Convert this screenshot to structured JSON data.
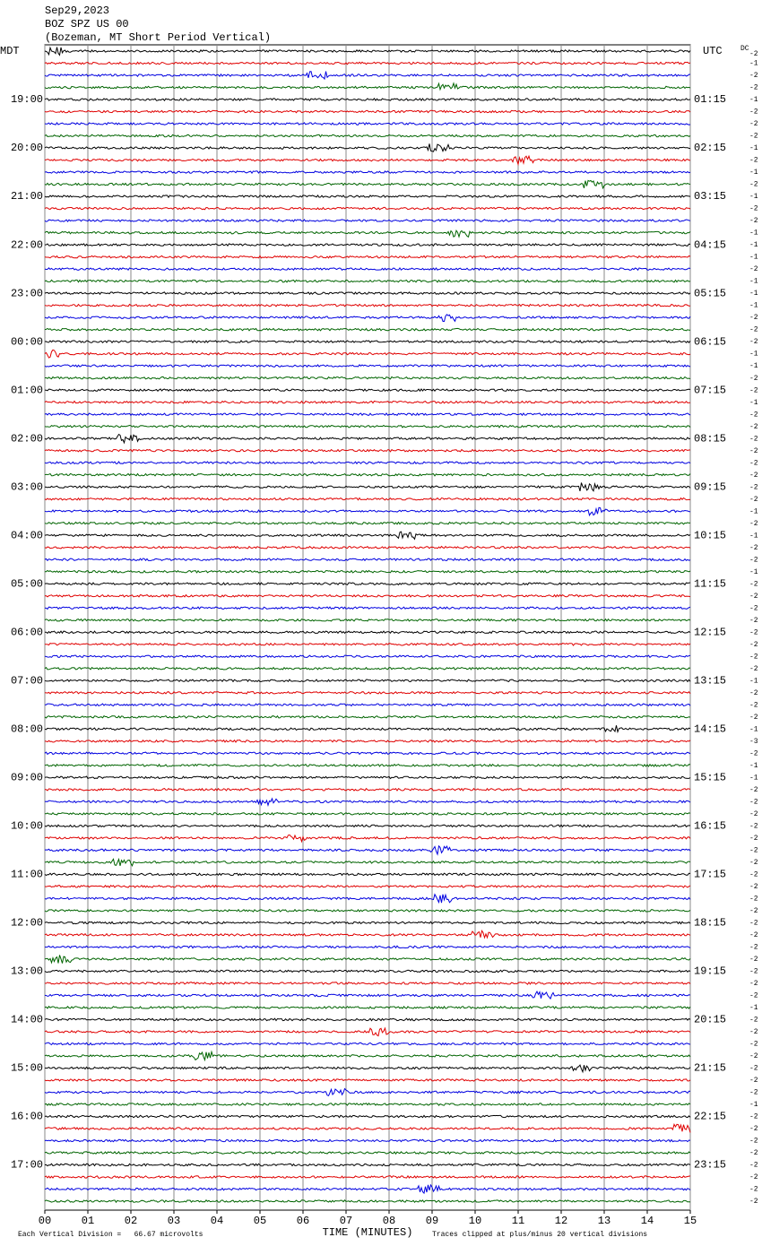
{
  "chart_data": {
    "type": "helicorder",
    "title_lines": [
      "Sep29,2023",
      "BOZ SPZ US 00",
      "(Bozeman, MT Short Period Vertical)"
    ],
    "left_zone": "MDT",
    "right_zone": "UTC",
    "dc_header": "DC",
    "xlabel": "TIME (MINUTES)",
    "scale_note": "Each Vertical Division =   66.67 microvolts",
    "clip_note": "Traces clipped at plus/minus 20 vertical divisions",
    "xlim": [
      0,
      15
    ],
    "xticks": [
      {
        "value": 0,
        "label": "00"
      },
      {
        "value": 1,
        "label": "01"
      },
      {
        "value": 2,
        "label": "02"
      },
      {
        "value": 3,
        "label": "03"
      },
      {
        "value": 4,
        "label": "04"
      },
      {
        "value": 5,
        "label": "05"
      },
      {
        "value": 6,
        "label": "06"
      },
      {
        "value": 7,
        "label": "07"
      },
      {
        "value": 8,
        "label": "08"
      },
      {
        "value": 9,
        "label": "09"
      },
      {
        "value": 10,
        "label": "10"
      },
      {
        "value": 11,
        "label": "11"
      },
      {
        "value": 12,
        "label": "12"
      },
      {
        "value": 13,
        "label": "13"
      },
      {
        "value": 14,
        "label": "14"
      },
      {
        "value": 15,
        "label": "15"
      }
    ],
    "grid": true,
    "trace_colors": [
      "#000000",
      "#e00000",
      "#0000e0",
      "#006400"
    ],
    "mdt_labels": [
      "19:00",
      "20:00",
      "21:00",
      "22:00",
      "23:00",
      "00:00",
      "01:00",
      "02:00",
      "03:00",
      "04:00",
      "05:00",
      "06:00",
      "07:00",
      "08:00",
      "09:00",
      "10:00",
      "11:00",
      "12:00",
      "13:00",
      "14:00",
      "15:00",
      "16:00",
      "17:00"
    ],
    "utc_labels": [
      "01:15",
      "02:15",
      "03:15",
      "04:15",
      "05:15",
      "06:15",
      "07:15",
      "08:15",
      "09:15",
      "10:15",
      "11:15",
      "12:15",
      "13:15",
      "14:15",
      "15:15",
      "16:15",
      "17:15",
      "18:15",
      "19:15",
      "20:15",
      "21:15",
      "22:15",
      "23:15"
    ],
    "dc_offsets": [
      -2,
      -1,
      -2,
      -2,
      -1,
      -2,
      -2,
      -2,
      -1,
      -2,
      -1,
      -2,
      -1,
      -2,
      -2,
      -1,
      -1,
      -1,
      -2,
      -1,
      -1,
      -1,
      -2,
      -2,
      -2,
      -1,
      -1,
      -2,
      -2,
      -1,
      -2,
      -2,
      -2,
      -2,
      -2,
      -2,
      -2,
      -2,
      -1,
      -2,
      -1,
      -2,
      -2,
      -1,
      -2,
      -2,
      -2,
      -2,
      -2,
      -2,
      -2,
      -2,
      -1,
      -2,
      -2,
      -2,
      -1,
      -3,
      -2,
      -1,
      -1,
      -2,
      -2,
      -2,
      -2,
      -2,
      -2,
      -2,
      -2,
      -2,
      -2,
      -2,
      -2,
      -2,
      -2,
      -2,
      -2,
      -2,
      -2,
      -1,
      -2,
      -2,
      -2,
      -2,
      -2,
      -2,
      -2,
      -1,
      -2,
      -2,
      -2,
      -2,
      -2,
      -2,
      -2,
      -2
    ]
  }
}
